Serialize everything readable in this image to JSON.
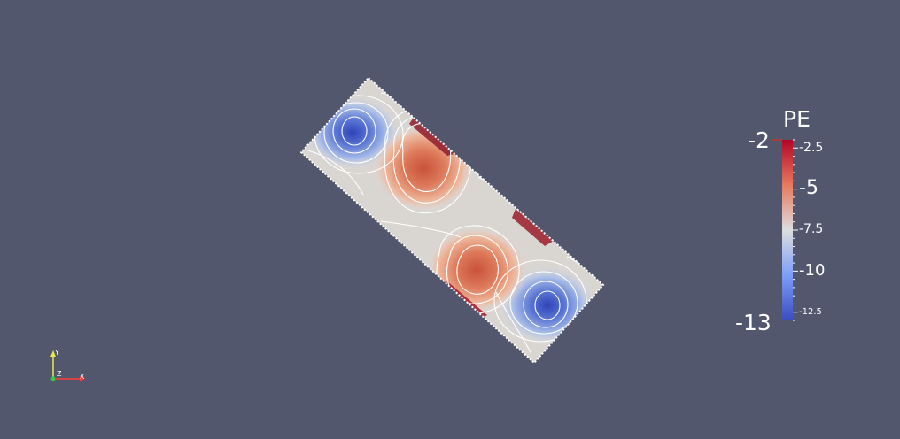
{
  "scalar_bar": {
    "title": "PE",
    "range_max_label": "-2",
    "range_min_label": "-13",
    "range": [
      -13,
      -2
    ],
    "ticks": [
      {
        "value": -2.5,
        "label": "-2.5"
      },
      {
        "value": -5,
        "label": "-5"
      },
      {
        "value": -7.5,
        "label": "-7.5"
      },
      {
        "value": -10,
        "label": "-10"
      },
      {
        "value": -12.5,
        "label": "-12.5"
      }
    ],
    "colors": {
      "low": "#3b4cc0",
      "mid": "#dddddd",
      "high": "#b40426"
    }
  },
  "axes": {
    "x_label": "X",
    "y_label": "Y",
    "z_label": "Z",
    "x_color": "#ff3a3a",
    "y_color": "#e8e84a",
    "z_color": "#2ecc40"
  },
  "view": {
    "background": "#52576e",
    "contour_color": "#ffffff"
  }
}
